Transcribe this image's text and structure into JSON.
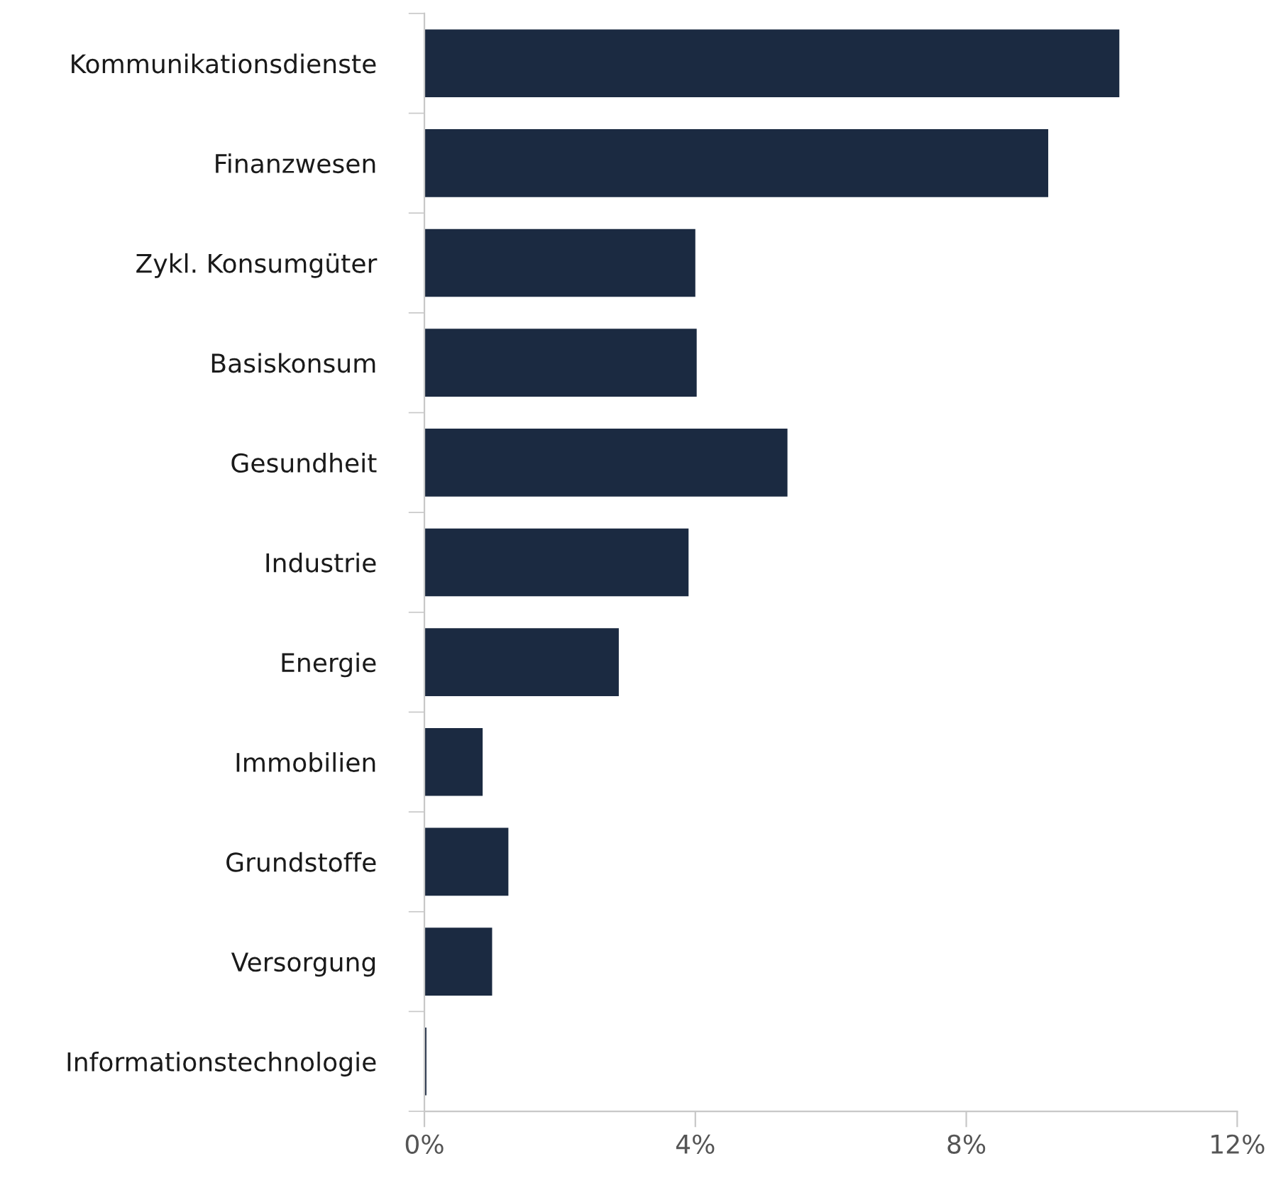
{
  "chart_data": {
    "type": "bar",
    "orientation": "horizontal",
    "categories": [
      "Kommunikationsdienste",
      "Finanzwesen",
      "Zykl. Konsumgüter",
      "Basiskonsum",
      "Gesundheit",
      "Industrie",
      "Energie",
      "Immobilien",
      "Grundstoffe",
      "Versorgung",
      "Informationstechnologie"
    ],
    "values": [
      10.26,
      9.21,
      4.0,
      4.02,
      5.36,
      3.9,
      2.87,
      0.86,
      1.24,
      1.0,
      0.03
    ],
    "color": "#1b2a41",
    "xlim": [
      0,
      12
    ],
    "xticks": [
      {
        "value": 0,
        "label": "0%"
      },
      {
        "value": 4,
        "label": "4%"
      },
      {
        "value": 8,
        "label": "8%"
      },
      {
        "value": 12,
        "label": "12%"
      }
    ],
    "grid": false,
    "legend": false
  }
}
